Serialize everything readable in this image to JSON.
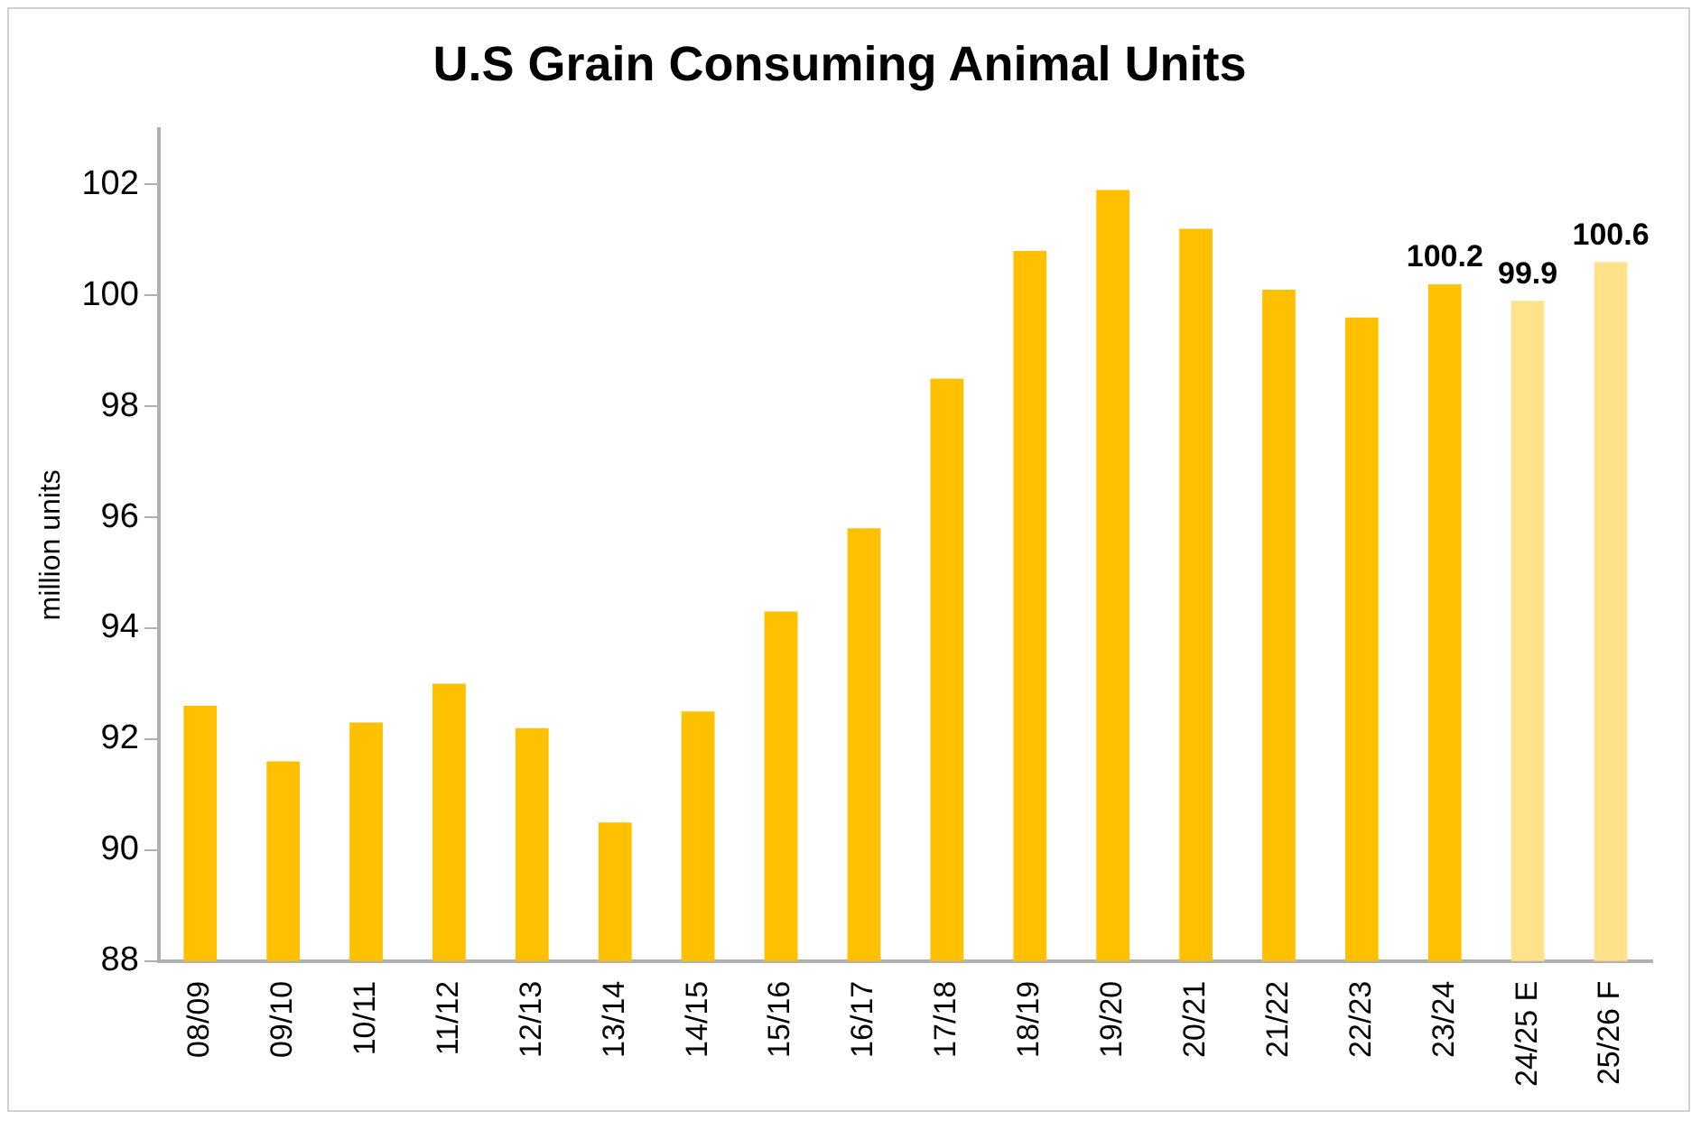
{
  "chart_data": {
    "type": "bar",
    "title": "U.S Grain Consuming Animal Units",
    "ylabel": "million units",
    "categories": [
      "08/09",
      "09/10",
      "10/11",
      "11/12",
      "12/13",
      "13/14",
      "14/15",
      "15/16",
      "16/17",
      "17/18",
      "18/19",
      "19/20",
      "20/21",
      "21/22",
      "22/23",
      "23/24",
      "24/25 E",
      "25/26 F"
    ],
    "values": [
      92.6,
      91.6,
      92.3,
      93.0,
      92.2,
      90.5,
      92.5,
      94.3,
      95.8,
      98.5,
      100.8,
      101.9,
      101.2,
      100.1,
      99.6,
      100.2,
      99.9,
      100.6
    ],
    "colors": [
      "#ffc000",
      "#ffc000",
      "#ffc000",
      "#ffc000",
      "#ffc000",
      "#ffc000",
      "#ffc000",
      "#ffc000",
      "#ffc000",
      "#ffc000",
      "#ffc000",
      "#ffc000",
      "#ffc000",
      "#ffc000",
      "#ffc000",
      "#ffc000",
      "#ffe28a",
      "#ffe28a"
    ],
    "value_labels": [
      null,
      null,
      null,
      null,
      null,
      null,
      null,
      null,
      null,
      null,
      null,
      null,
      null,
      null,
      null,
      "100.2",
      "99.9",
      "100.6"
    ],
    "ylim": [
      88,
      103
    ],
    "yticks": [
      88,
      90,
      92,
      94,
      96,
      98,
      100,
      102
    ],
    "grid": false,
    "legend": false
  }
}
